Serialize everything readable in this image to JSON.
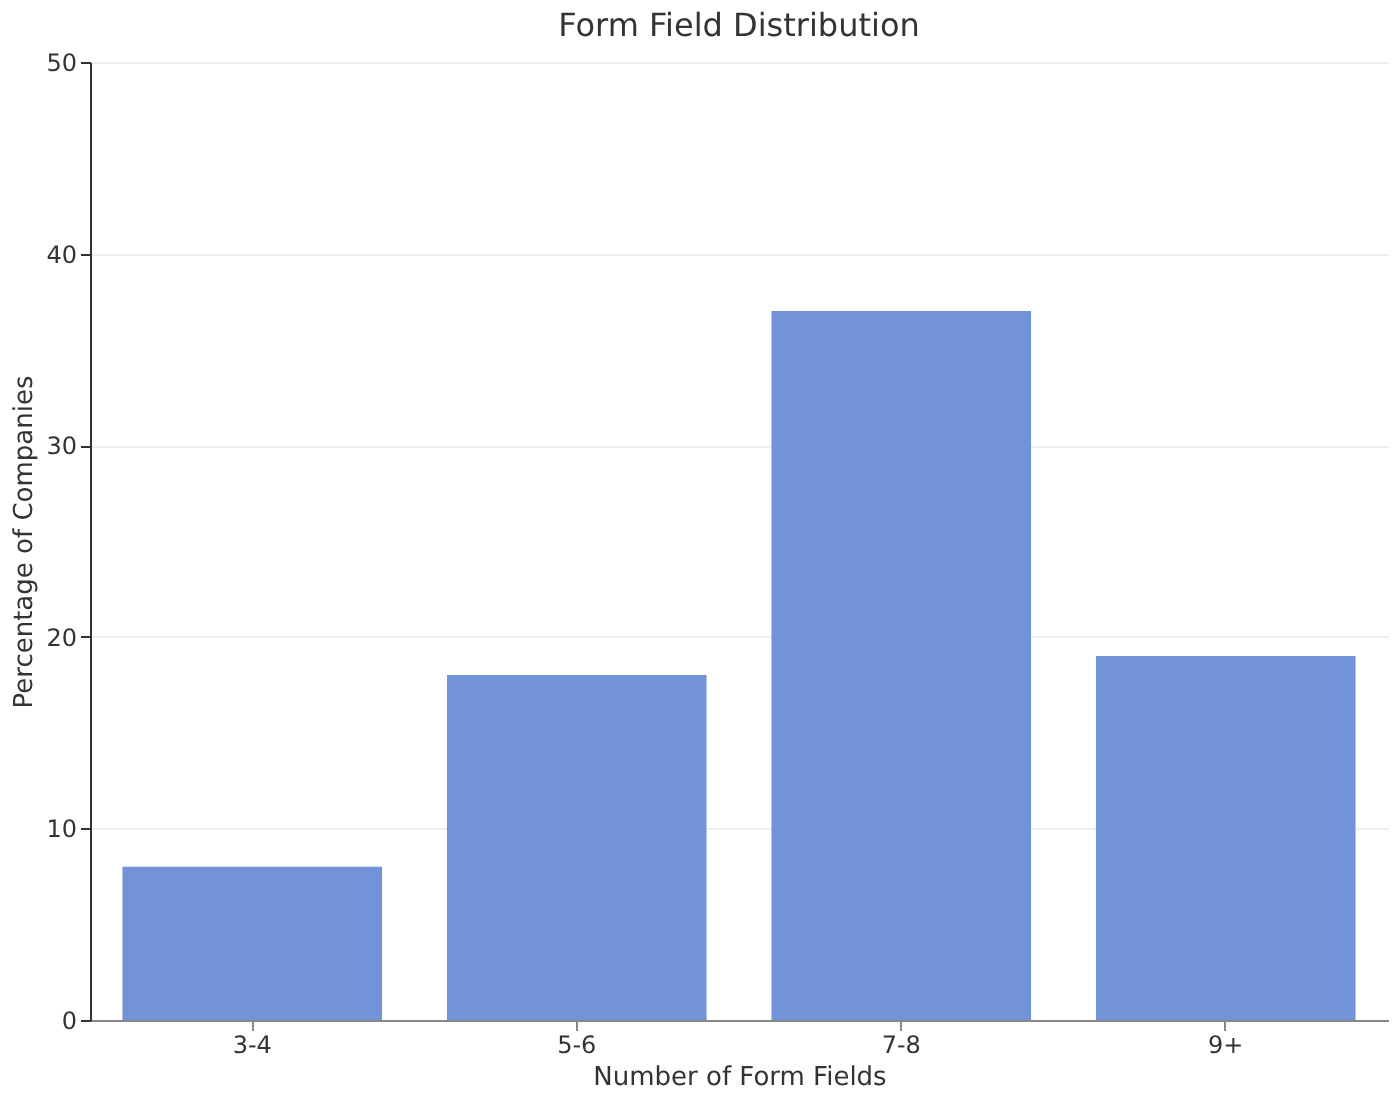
{
  "chart_data": {
    "type": "bar",
    "title": "Form Field Distribution",
    "xlabel": "Number of Form Fields",
    "ylabel": "Percentage of Companies",
    "categories": [
      "3-4",
      "5-6",
      "7-8",
      "9+"
    ],
    "values": [
      8,
      18,
      37,
      19
    ],
    "color": "#7393d8",
    "ylim": [
      0,
      50
    ],
    "yticks": [
      0,
      10,
      20,
      30,
      40,
      50
    ],
    "grid": "y"
  }
}
